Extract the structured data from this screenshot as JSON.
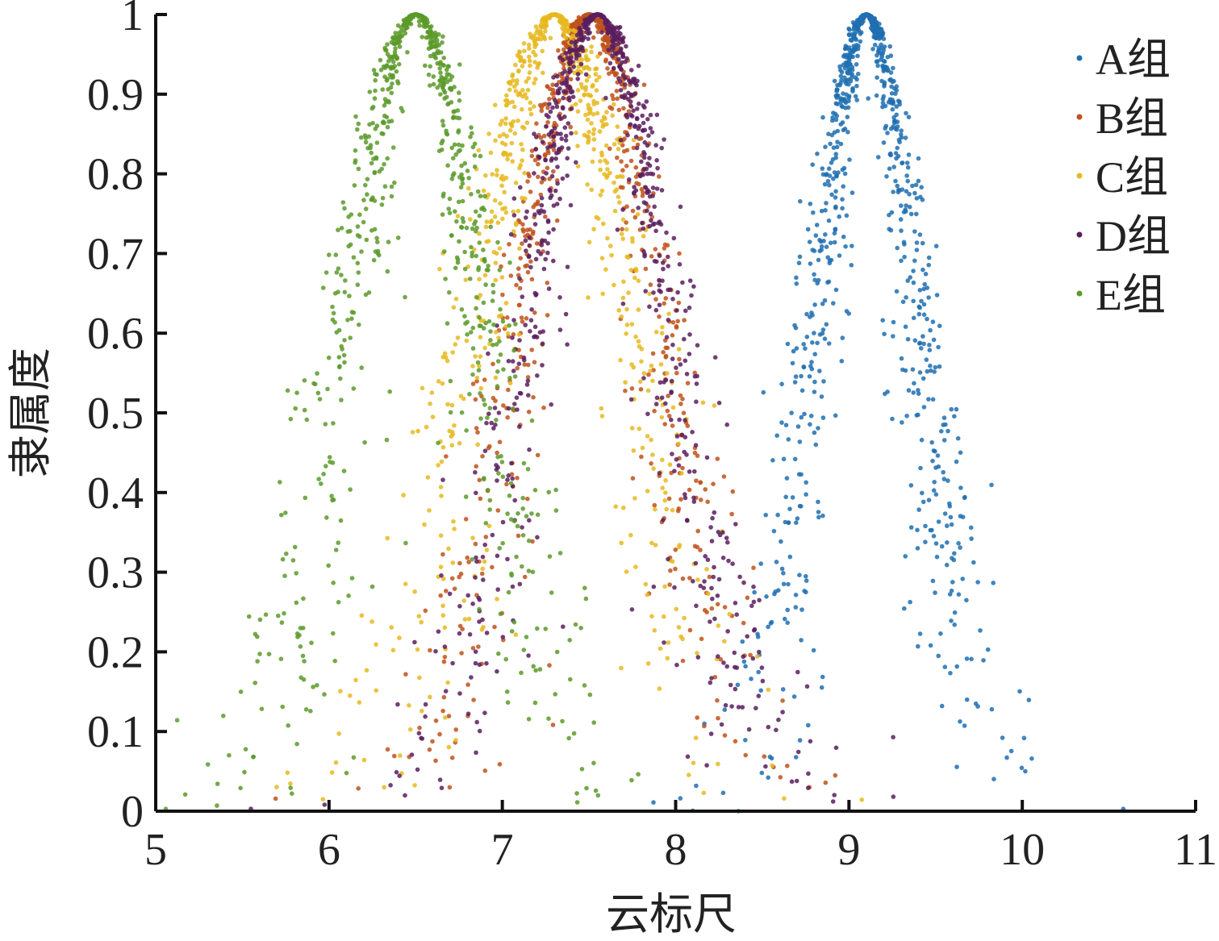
{
  "chart_data": {
    "type": "scatter",
    "xlabel": "云标尺",
    "ylabel": "隶属度",
    "xlim": [
      5,
      11
    ],
    "ylim": [
      0,
      1
    ],
    "x_ticks": [
      5,
      6,
      7,
      8,
      9,
      10,
      11
    ],
    "x_tick_labels": [
      "5",
      "6",
      "7",
      "8",
      "9",
      "10",
      "11"
    ],
    "y_ticks": [
      0,
      0.1,
      0.2,
      0.3,
      0.4,
      0.5,
      0.6,
      0.7,
      0.8,
      0.9,
      1
    ],
    "y_tick_labels": [
      "0",
      "0.1",
      "0.2",
      "0.3",
      "0.4",
      "0.5",
      "0.6",
      "0.7",
      "0.8",
      "0.9",
      "1"
    ],
    "grid": false,
    "legend_position": "top-right",
    "series": [
      {
        "name": "A组",
        "color": "#1f6fb0",
        "expectation": 9.1,
        "entropy": 0.3,
        "hyper_entropy": 0.08,
        "points": 900
      },
      {
        "name": "B组",
        "color": "#c0521a",
        "expectation": 7.5,
        "entropy": 0.42,
        "hyper_entropy": 0.1,
        "points": 700
      },
      {
        "name": "C组",
        "color": "#e6b820",
        "expectation": 7.3,
        "entropy": 0.45,
        "hyper_entropy": 0.12,
        "points": 700
      },
      {
        "name": "D组",
        "color": "#5a1d5e",
        "expectation": 7.55,
        "entropy": 0.42,
        "hyper_entropy": 0.1,
        "points": 800
      },
      {
        "name": "E组",
        "color": "#5c9a2a",
        "expectation": 6.5,
        "entropy": 0.4,
        "hyper_entropy": 0.1,
        "points": 800
      }
    ]
  }
}
